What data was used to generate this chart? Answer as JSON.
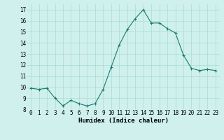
{
  "x": [
    0,
    1,
    2,
    3,
    4,
    5,
    6,
    7,
    8,
    9,
    10,
    11,
    12,
    13,
    14,
    15,
    16,
    17,
    18,
    19,
    20,
    21,
    22,
    23
  ],
  "y": [
    9.9,
    9.8,
    9.9,
    9.0,
    8.3,
    8.8,
    8.5,
    8.3,
    8.5,
    9.8,
    11.8,
    13.8,
    15.2,
    16.2,
    17.0,
    15.8,
    15.8,
    15.3,
    14.9,
    12.9,
    11.7,
    11.5,
    11.6,
    11.5
  ],
  "line_color": "#1a7a6e",
  "marker": "+",
  "marker_size": 3,
  "marker_linewidth": 0.8,
  "line_width": 0.8,
  "bg_color": "#cff0ec",
  "grid_color": "#a8dbd5",
  "xlabel": "Humidex (Indice chaleur)",
  "xlim": [
    -0.5,
    23.5
  ],
  "ylim": [
    8,
    17.5
  ],
  "yticks": [
    8,
    9,
    10,
    11,
    12,
    13,
    14,
    15,
    16,
    17
  ],
  "xtick_labels": [
    "0",
    "1",
    "2",
    "3",
    "4",
    "5",
    "6",
    "7",
    "8",
    "9",
    "10",
    "11",
    "12",
    "13",
    "14",
    "15",
    "16",
    "17",
    "18",
    "19",
    "20",
    "21",
    "22",
    "23"
  ],
  "tick_fontsize": 5.5,
  "xlabel_fontsize": 6.5
}
